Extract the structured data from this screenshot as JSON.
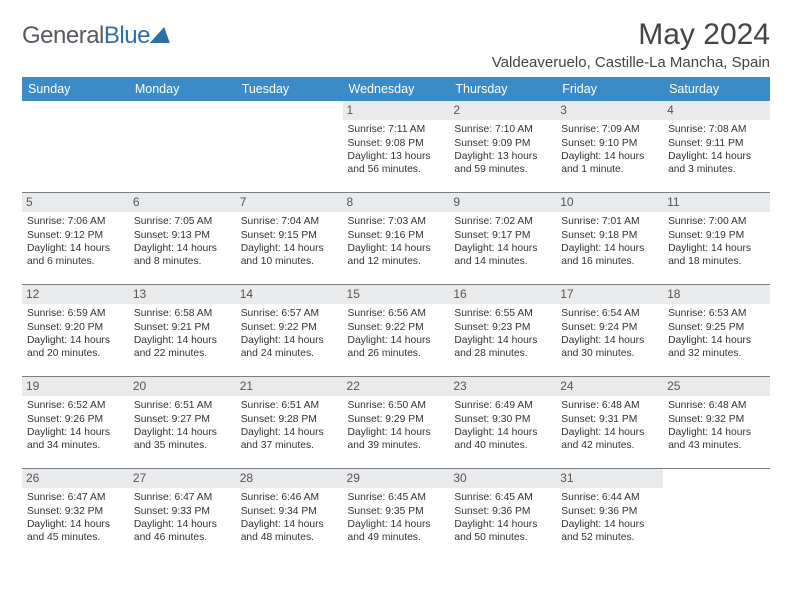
{
  "brand": {
    "part1": "General",
    "part2": "Blue"
  },
  "title": "May 2024",
  "location": "Valdeaveruelo, Castille-La Mancha, Spain",
  "header_bg": "#3b8bc9",
  "daybar_bg": "#e9eaeb",
  "border_color": "#7a7f85",
  "weekdays": [
    "Sunday",
    "Monday",
    "Tuesday",
    "Wednesday",
    "Thursday",
    "Friday",
    "Saturday"
  ],
  "weeks": [
    [
      {
        "n": "",
        "sr": "",
        "ss": "",
        "dl": ""
      },
      {
        "n": "",
        "sr": "",
        "ss": "",
        "dl": ""
      },
      {
        "n": "",
        "sr": "",
        "ss": "",
        "dl": ""
      },
      {
        "n": "1",
        "sr": "Sunrise: 7:11 AM",
        "ss": "Sunset: 9:08 PM",
        "dl": "Daylight: 13 hours and 56 minutes."
      },
      {
        "n": "2",
        "sr": "Sunrise: 7:10 AM",
        "ss": "Sunset: 9:09 PM",
        "dl": "Daylight: 13 hours and 59 minutes."
      },
      {
        "n": "3",
        "sr": "Sunrise: 7:09 AM",
        "ss": "Sunset: 9:10 PM",
        "dl": "Daylight: 14 hours and 1 minute."
      },
      {
        "n": "4",
        "sr": "Sunrise: 7:08 AM",
        "ss": "Sunset: 9:11 PM",
        "dl": "Daylight: 14 hours and 3 minutes."
      }
    ],
    [
      {
        "n": "5",
        "sr": "Sunrise: 7:06 AM",
        "ss": "Sunset: 9:12 PM",
        "dl": "Daylight: 14 hours and 6 minutes."
      },
      {
        "n": "6",
        "sr": "Sunrise: 7:05 AM",
        "ss": "Sunset: 9:13 PM",
        "dl": "Daylight: 14 hours and 8 minutes."
      },
      {
        "n": "7",
        "sr": "Sunrise: 7:04 AM",
        "ss": "Sunset: 9:15 PM",
        "dl": "Daylight: 14 hours and 10 minutes."
      },
      {
        "n": "8",
        "sr": "Sunrise: 7:03 AM",
        "ss": "Sunset: 9:16 PM",
        "dl": "Daylight: 14 hours and 12 minutes."
      },
      {
        "n": "9",
        "sr": "Sunrise: 7:02 AM",
        "ss": "Sunset: 9:17 PM",
        "dl": "Daylight: 14 hours and 14 minutes."
      },
      {
        "n": "10",
        "sr": "Sunrise: 7:01 AM",
        "ss": "Sunset: 9:18 PM",
        "dl": "Daylight: 14 hours and 16 minutes."
      },
      {
        "n": "11",
        "sr": "Sunrise: 7:00 AM",
        "ss": "Sunset: 9:19 PM",
        "dl": "Daylight: 14 hours and 18 minutes."
      }
    ],
    [
      {
        "n": "12",
        "sr": "Sunrise: 6:59 AM",
        "ss": "Sunset: 9:20 PM",
        "dl": "Daylight: 14 hours and 20 minutes."
      },
      {
        "n": "13",
        "sr": "Sunrise: 6:58 AM",
        "ss": "Sunset: 9:21 PM",
        "dl": "Daylight: 14 hours and 22 minutes."
      },
      {
        "n": "14",
        "sr": "Sunrise: 6:57 AM",
        "ss": "Sunset: 9:22 PM",
        "dl": "Daylight: 14 hours and 24 minutes."
      },
      {
        "n": "15",
        "sr": "Sunrise: 6:56 AM",
        "ss": "Sunset: 9:22 PM",
        "dl": "Daylight: 14 hours and 26 minutes."
      },
      {
        "n": "16",
        "sr": "Sunrise: 6:55 AM",
        "ss": "Sunset: 9:23 PM",
        "dl": "Daylight: 14 hours and 28 minutes."
      },
      {
        "n": "17",
        "sr": "Sunrise: 6:54 AM",
        "ss": "Sunset: 9:24 PM",
        "dl": "Daylight: 14 hours and 30 minutes."
      },
      {
        "n": "18",
        "sr": "Sunrise: 6:53 AM",
        "ss": "Sunset: 9:25 PM",
        "dl": "Daylight: 14 hours and 32 minutes."
      }
    ],
    [
      {
        "n": "19",
        "sr": "Sunrise: 6:52 AM",
        "ss": "Sunset: 9:26 PM",
        "dl": "Daylight: 14 hours and 34 minutes."
      },
      {
        "n": "20",
        "sr": "Sunrise: 6:51 AM",
        "ss": "Sunset: 9:27 PM",
        "dl": "Daylight: 14 hours and 35 minutes."
      },
      {
        "n": "21",
        "sr": "Sunrise: 6:51 AM",
        "ss": "Sunset: 9:28 PM",
        "dl": "Daylight: 14 hours and 37 minutes."
      },
      {
        "n": "22",
        "sr": "Sunrise: 6:50 AM",
        "ss": "Sunset: 9:29 PM",
        "dl": "Daylight: 14 hours and 39 minutes."
      },
      {
        "n": "23",
        "sr": "Sunrise: 6:49 AM",
        "ss": "Sunset: 9:30 PM",
        "dl": "Daylight: 14 hours and 40 minutes."
      },
      {
        "n": "24",
        "sr": "Sunrise: 6:48 AM",
        "ss": "Sunset: 9:31 PM",
        "dl": "Daylight: 14 hours and 42 minutes."
      },
      {
        "n": "25",
        "sr": "Sunrise: 6:48 AM",
        "ss": "Sunset: 9:32 PM",
        "dl": "Daylight: 14 hours and 43 minutes."
      }
    ],
    [
      {
        "n": "26",
        "sr": "Sunrise: 6:47 AM",
        "ss": "Sunset: 9:32 PM",
        "dl": "Daylight: 14 hours and 45 minutes."
      },
      {
        "n": "27",
        "sr": "Sunrise: 6:47 AM",
        "ss": "Sunset: 9:33 PM",
        "dl": "Daylight: 14 hours and 46 minutes."
      },
      {
        "n": "28",
        "sr": "Sunrise: 6:46 AM",
        "ss": "Sunset: 9:34 PM",
        "dl": "Daylight: 14 hours and 48 minutes."
      },
      {
        "n": "29",
        "sr": "Sunrise: 6:45 AM",
        "ss": "Sunset: 9:35 PM",
        "dl": "Daylight: 14 hours and 49 minutes."
      },
      {
        "n": "30",
        "sr": "Sunrise: 6:45 AM",
        "ss": "Sunset: 9:36 PM",
        "dl": "Daylight: 14 hours and 50 minutes."
      },
      {
        "n": "31",
        "sr": "Sunrise: 6:44 AM",
        "ss": "Sunset: 9:36 PM",
        "dl": "Daylight: 14 hours and 52 minutes."
      },
      {
        "n": "",
        "sr": "",
        "ss": "",
        "dl": ""
      }
    ]
  ]
}
